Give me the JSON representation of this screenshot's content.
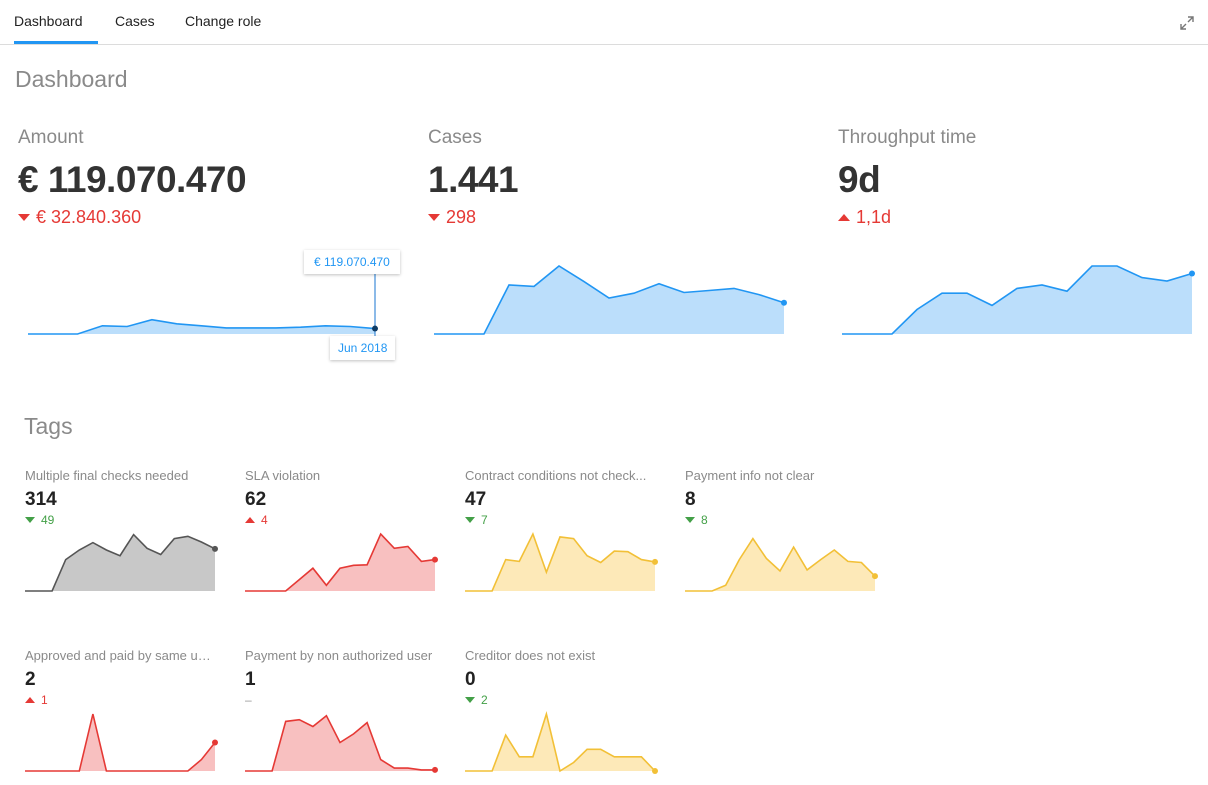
{
  "nav": {
    "tabs": [
      {
        "label": "Dashboard",
        "active": true
      },
      {
        "label": "Cases",
        "active": false
      },
      {
        "label": "Change role",
        "active": false
      }
    ],
    "expand_icon": "expand-icon"
  },
  "page_title": "Dashboard",
  "kpis": [
    {
      "label": "Amount",
      "value": "€ 119.070.470",
      "delta": "€ 32.840.360",
      "direction": "down",
      "color": "#e53935",
      "series": [
        0,
        0,
        0,
        0.12,
        0.11,
        0.21,
        0.15,
        0.12,
        0.09,
        0.09,
        0.09,
        0.1,
        0.12,
        0.11,
        0.08
      ],
      "tooltip_value": "€ 119.070.470",
      "tooltip_date": "Jun 2018"
    },
    {
      "label": "Cases",
      "value": "1.441",
      "delta": "298",
      "direction": "down",
      "color": "#e53935",
      "series": [
        0,
        0,
        0,
        0.72,
        0.7,
        1.0,
        0.77,
        0.53,
        0.6,
        0.74,
        0.61,
        0.64,
        0.67,
        0.58,
        0.46
      ]
    },
    {
      "label": "Throughput time",
      "value": "9d",
      "delta": "1,1d",
      "direction": "up",
      "color": "#e53935",
      "series": [
        0,
        0,
        0,
        0.36,
        0.6,
        0.6,
        0.42,
        0.67,
        0.72,
        0.63,
        1.0,
        1.0,
        0.83,
        0.78,
        0.89
      ]
    }
  ],
  "tags_title": "Tags",
  "tags": [
    {
      "label": "Multiple final checks needed",
      "value": "314",
      "delta": "49",
      "direction": "down",
      "delta_color": "#43a047",
      "stroke": "#555555",
      "fill": "#c8c8c8",
      "series": [
        0,
        0,
        0,
        0.55,
        0.72,
        0.85,
        0.72,
        0.62,
        0.99,
        0.75,
        0.64,
        0.92,
        0.96,
        0.86,
        0.74
      ]
    },
    {
      "label": "SLA violation",
      "value": "62",
      "delta": "4",
      "direction": "up",
      "delta_color": "#e53935",
      "stroke": "#e53935",
      "fill": "#f8c0c0",
      "series": [
        0,
        0,
        0,
        0,
        0.2,
        0.4,
        0.1,
        0.4,
        0.45,
        0.46,
        1.0,
        0.75,
        0.78,
        0.52,
        0.55
      ]
    },
    {
      "label": "Contract conditions not check...",
      "value": "47",
      "delta": "7",
      "direction": "down",
      "delta_color": "#43a047",
      "stroke": "#f2c037",
      "fill": "#fde9b8",
      "series": [
        0,
        0,
        0,
        0.55,
        0.52,
        1.0,
        0.33,
        0.95,
        0.92,
        0.62,
        0.5,
        0.7,
        0.69,
        0.55,
        0.51
      ]
    },
    {
      "label": "Payment info not clear",
      "value": "8",
      "delta": "8",
      "direction": "down",
      "delta_color": "#43a047",
      "stroke": "#f2c037",
      "fill": "#fde9b8",
      "series": [
        0,
        0,
        0,
        0.1,
        0.55,
        0.92,
        0.57,
        0.35,
        0.77,
        0.37,
        0.55,
        0.72,
        0.52,
        0.5,
        0.26
      ]
    },
    {
      "label": "Approved and paid by same user",
      "value": "2",
      "delta": "1",
      "direction": "up",
      "delta_color": "#e53935",
      "stroke": "#e53935",
      "fill": "#f8c0c0",
      "series": [
        0,
        0,
        0,
        0,
        0,
        1.0,
        0,
        0,
        0,
        0,
        0,
        0,
        0,
        0.2,
        0.5
      ]
    },
    {
      "label": "Payment by non authorized user",
      "value": "1",
      "delta": "–",
      "direction": "none",
      "delta_color": "#999999",
      "stroke": "#e53935",
      "fill": "#f8c0c0",
      "series": [
        0,
        0,
        0,
        0.87,
        0.9,
        0.78,
        0.97,
        0.5,
        0.65,
        0.85,
        0.2,
        0.05,
        0.05,
        0.02,
        0.02
      ]
    },
    {
      "label": "Creditor does not exist",
      "value": "0",
      "delta": "2",
      "direction": "down",
      "delta_color": "#43a047",
      "stroke": "#f2c037",
      "fill": "#fde9b8",
      "series": [
        0,
        0,
        0,
        0.63,
        0.25,
        0.25,
        1.0,
        0,
        0.15,
        0.38,
        0.38,
        0.25,
        0.25,
        0.25,
        0
      ]
    }
  ]
}
